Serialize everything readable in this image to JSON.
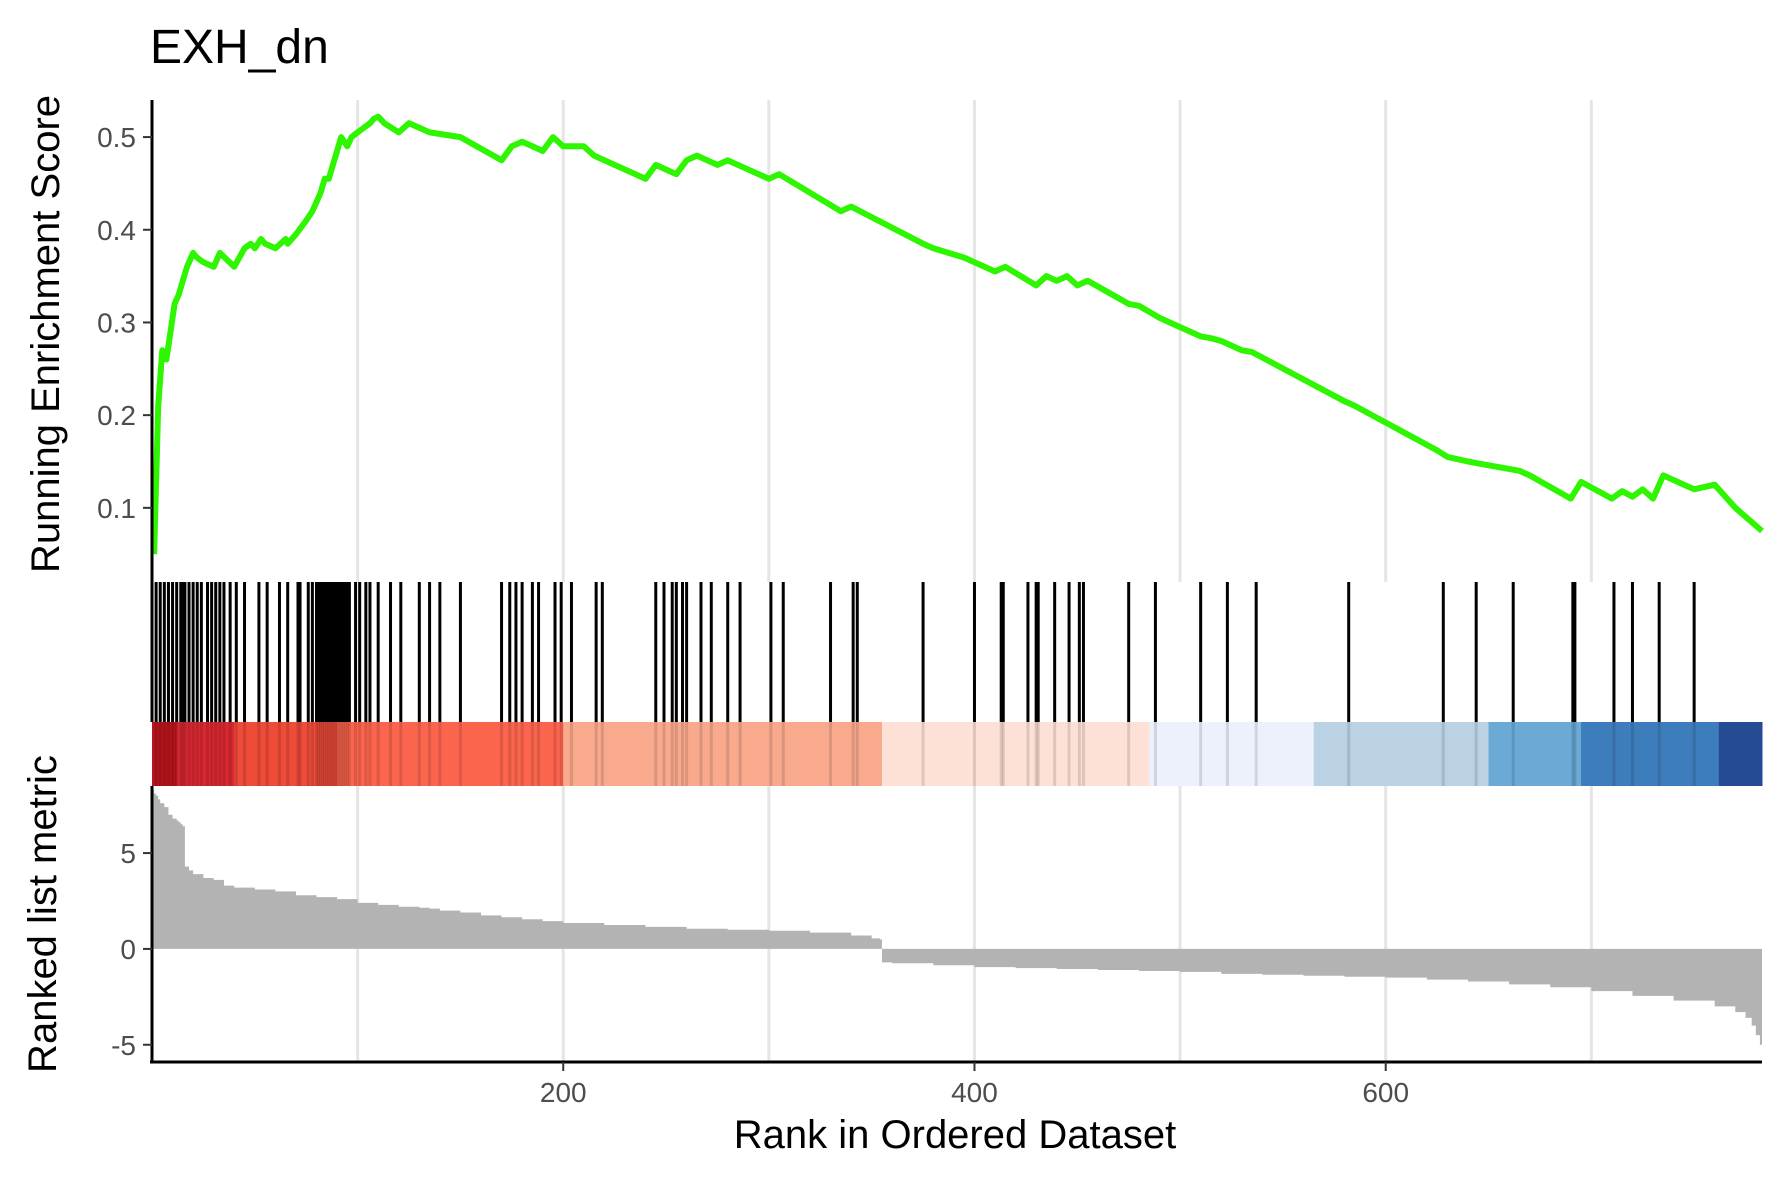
{
  "chart_data": {
    "type": "line",
    "title": "EXH_dn",
    "xlabel": "Rank in Ordered Dataset",
    "xlim": [
      0,
      783
    ],
    "grid": "vertical",
    "colors": {
      "es_line": "#2EF500",
      "hits": "#000000",
      "metric_fill": "#B3B3B3",
      "grid": "#E5E5E5",
      "axis": "#000000"
    },
    "panels": {
      "running_es": {
        "ylabel": "Running Enrichment Score",
        "ylim": [
          0.02,
          0.54
        ],
        "yticks": [
          0.1,
          0.2,
          0.3,
          0.4,
          0.5
        ],
        "ytick_labels": [
          "0.1",
          "0.2",
          "0.3",
          "0.4",
          "0.5"
        ],
        "x": [
          1,
          3,
          5,
          7,
          9,
          11,
          13,
          15,
          17,
          19,
          20,
          21,
          22,
          23,
          25,
          30,
          33,
          40,
          45,
          48,
          50,
          53,
          55,
          60,
          65,
          66,
          70,
          75,
          78,
          80,
          82,
          84,
          86,
          88,
          90,
          92,
          95,
          97,
          100,
          103,
          106,
          108,
          110,
          113,
          120,
          125,
          130,
          135,
          150,
          170,
          175,
          180,
          185,
          190,
          195,
          200,
          210,
          215,
          240,
          245,
          250,
          255,
          260,
          265,
          270,
          275,
          280,
          295,
          300,
          305,
          335,
          340,
          375,
          380,
          395,
          400,
          410,
          415,
          430,
          435,
          440,
          445,
          450,
          455,
          475,
          480,
          490,
          495,
          510,
          515,
          520,
          525,
          530,
          535,
          580,
          585,
          625,
          630,
          640,
          645,
          665,
          670,
          690,
          695,
          710,
          715,
          720,
          725,
          730,
          735,
          750,
          760,
          770,
          783
        ],
        "y": [
          0.05,
          0.21,
          0.27,
          0.26,
          0.29,
          0.32,
          0.33,
          0.345,
          0.36,
          0.37,
          0.375,
          0.372,
          0.37,
          0.368,
          0.365,
          0.36,
          0.375,
          0.36,
          0.38,
          0.385,
          0.38,
          0.39,
          0.385,
          0.38,
          0.39,
          0.385,
          0.395,
          0.41,
          0.42,
          0.43,
          0.44,
          0.455,
          0.455,
          0.47,
          0.485,
          0.5,
          0.49,
          0.5,
          0.505,
          0.51,
          0.515,
          0.52,
          0.522,
          0.515,
          0.505,
          0.515,
          0.51,
          0.505,
          0.5,
          0.475,
          0.49,
          0.495,
          0.49,
          0.485,
          0.5,
          0.49,
          0.49,
          0.48,
          0.455,
          0.47,
          0.465,
          0.46,
          0.475,
          0.48,
          0.475,
          0.47,
          0.475,
          0.46,
          0.455,
          0.46,
          0.42,
          0.425,
          0.385,
          0.38,
          0.37,
          0.365,
          0.355,
          0.36,
          0.34,
          0.35,
          0.345,
          0.35,
          0.34,
          0.345,
          0.32,
          0.318,
          0.305,
          0.3,
          0.285,
          0.283,
          0.28,
          0.275,
          0.27,
          0.268,
          0.215,
          0.21,
          0.162,
          0.155,
          0.15,
          0.148,
          0.14,
          0.135,
          0.11,
          0.128,
          0.11,
          0.118,
          0.112,
          0.12,
          0.11,
          0.135,
          0.12,
          0.125,
          0.1,
          0.075
        ]
      },
      "hits": {
        "positions": [
          2,
          4,
          6,
          8,
          10,
          12,
          14,
          15,
          16,
          18,
          20,
          22,
          24,
          27,
          29,
          31,
          33,
          35,
          38,
          41,
          45,
          52,
          56,
          62,
          66,
          71,
          72,
          76,
          78,
          80,
          81,
          82,
          83,
          84,
          85,
          86,
          87,
          88,
          89,
          90,
          91,
          92,
          93,
          94,
          95,
          96,
          99,
          101,
          104,
          106,
          110,
          116,
          121,
          130,
          135,
          140,
          150,
          170,
          174,
          177,
          180,
          185,
          188,
          196,
          199,
          204,
          216,
          219,
          245,
          249,
          253,
          255,
          258,
          260,
          267,
          272,
          280,
          286,
          301,
          307,
          330,
          341,
          343,
          375,
          400,
          413,
          414,
          426,
          430,
          431,
          439,
          446,
          451,
          453,
          475,
          488,
          510,
          523,
          537,
          582,
          628,
          644,
          662,
          691,
          692,
          711,
          720,
          733,
          750
        ]
      },
      "color_bar": {
        "segments": [
          {
            "from": 0,
            "to": 12,
            "color": "#B7151C"
          },
          {
            "from": 12,
            "to": 40,
            "color": "#D92831"
          },
          {
            "from": 40,
            "to": 90,
            "color": "#EE4B39"
          },
          {
            "from": 90,
            "to": 200,
            "color": "#FB654E"
          },
          {
            "from": 200,
            "to": 355,
            "color": "#F9A98C"
          },
          {
            "from": 355,
            "to": 485,
            "color": "#FDE1D6"
          },
          {
            "from": 485,
            "to": 565,
            "color": "#EDF1FC"
          },
          {
            "from": 565,
            "to": 650,
            "color": "#BBD2E5"
          },
          {
            "from": 650,
            "to": 695,
            "color": "#6AAAD5"
          },
          {
            "from": 695,
            "to": 762,
            "color": "#3E7DBC"
          },
          {
            "from": 762,
            "to": 783,
            "color": "#244B93"
          }
        ]
      },
      "ranked_metric": {
        "ylabel": "Ranked list metric",
        "ylim": [
          -5.9,
          8.5
        ],
        "yticks": [
          -5,
          0,
          5
        ],
        "ytick_labels": [
          "-5",
          "0",
          "5"
        ],
        "xticks": [
          200,
          400,
          600
        ],
        "xtick_labels": [
          "200",
          "400",
          "600"
        ],
        "x": [
          0,
          1,
          2,
          3,
          4,
          6,
          8,
          10,
          12,
          13,
          14,
          15,
          16,
          18,
          20,
          25,
          30,
          35,
          40,
          50,
          60,
          70,
          80,
          90,
          100,
          110,
          120,
          125,
          130,
          135,
          140,
          150,
          160,
          170,
          180,
          190,
          200,
          220,
          240,
          260,
          280,
          300,
          320,
          340,
          350,
          354,
          355,
          360,
          380,
          400,
          420,
          440,
          460,
          480,
          500,
          520,
          540,
          560,
          580,
          600,
          620,
          640,
          660,
          680,
          700,
          720,
          740,
          760,
          770,
          775,
          778,
          780,
          782,
          783
        ],
        "y": [
          8.3,
          8.1,
          8.0,
          7.8,
          7.6,
          7.4,
          7.0,
          6.8,
          6.7,
          6.6,
          6.5,
          6.4,
          4.3,
          4.1,
          3.9,
          3.7,
          3.6,
          3.3,
          3.2,
          3.1,
          3.0,
          2.8,
          2.7,
          2.6,
          2.4,
          2.3,
          2.2,
          2.2,
          2.15,
          2.1,
          2.0,
          1.9,
          1.75,
          1.65,
          1.55,
          1.45,
          1.35,
          1.25,
          1.15,
          1.05,
          1.0,
          0.95,
          0.85,
          0.7,
          0.55,
          0.5,
          -0.7,
          -0.75,
          -0.85,
          -0.95,
          -1.0,
          -1.05,
          -1.1,
          -1.15,
          -1.2,
          -1.3,
          -1.35,
          -1.4,
          -1.45,
          -1.5,
          -1.6,
          -1.7,
          -1.85,
          -2.0,
          -2.2,
          -2.45,
          -2.7,
          -3.0,
          -3.3,
          -3.6,
          -4.0,
          -4.5,
          -5.0,
          -5.3
        ]
      }
    }
  }
}
